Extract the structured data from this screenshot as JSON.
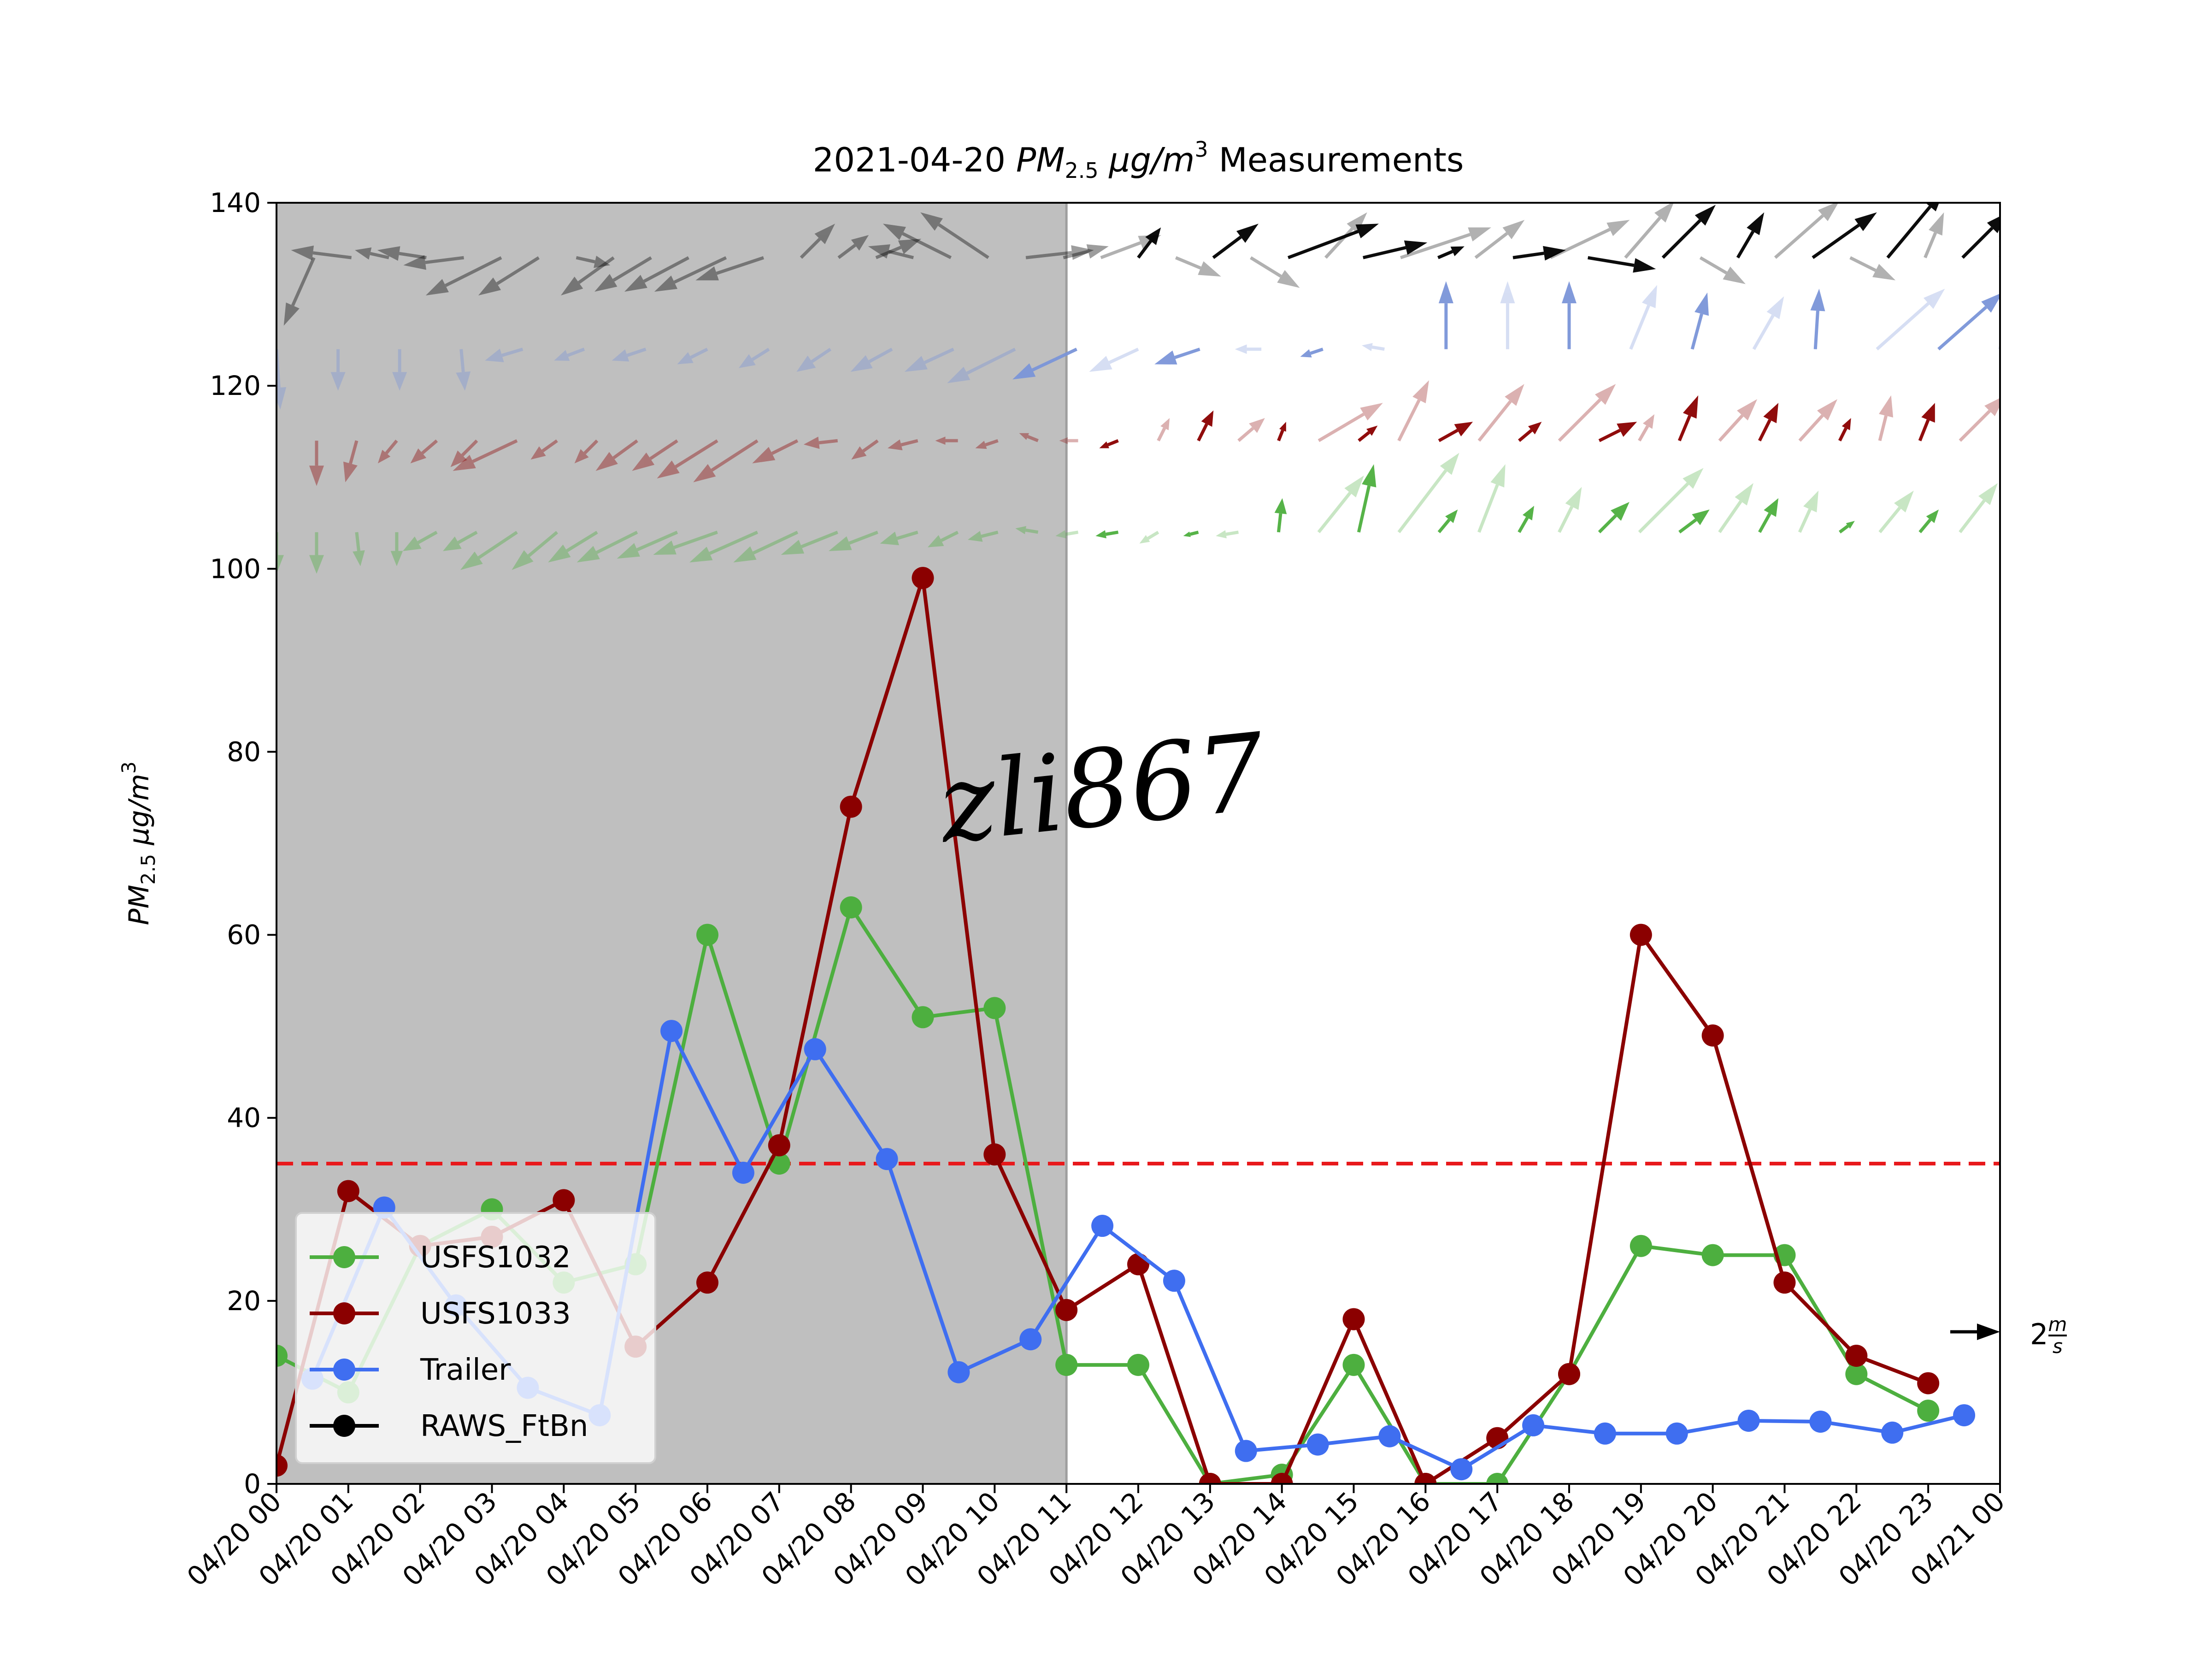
{
  "chart_data": {
    "type": "line",
    "title": {
      "prefix": "2021-04-20 ",
      "pm": "PM",
      "pm_sub": "2.5",
      "unit_mu": " μg/m",
      "unit_sup": "3",
      "suffix": " Measurements"
    },
    "ylabel": {
      "pm": "PM",
      "pm_sub": "2.5",
      "unit_mu": " μg/m",
      "unit_sup": "3"
    },
    "xlim": [
      0,
      24
    ],
    "ylim": [
      0,
      140
    ],
    "yticks": [
      0,
      20,
      40,
      60,
      80,
      100,
      120,
      140
    ],
    "x_tick_labels": [
      "04/20 00",
      "04/20 01",
      "04/20 02",
      "04/20 03",
      "04/20 04",
      "04/20 05",
      "04/20 06",
      "04/20 07",
      "04/20 08",
      "04/20 09",
      "04/20 10",
      "04/20 11",
      "04/20 12",
      "04/20 13",
      "04/20 14",
      "04/20 15",
      "04/20 16",
      "04/20 17",
      "04/20 18",
      "04/20 19",
      "04/20 20",
      "04/20 21",
      "04/20 22",
      "04/20 23",
      "04/21 00"
    ],
    "night_shading_hours": [
      0,
      11
    ],
    "threshold": {
      "value": 35,
      "color": "#e8191c",
      "style": "dashed"
    },
    "series": [
      {
        "name": "USFS1032",
        "color": "#4daf3f",
        "x": [
          0,
          1,
          2,
          3,
          4,
          5,
          6,
          7,
          8,
          9,
          10,
          11,
          12,
          13,
          14,
          15,
          16,
          17,
          18,
          19,
          20,
          21,
          22,
          23
        ],
        "y": [
          14,
          10,
          26,
          30,
          22,
          24,
          60,
          35,
          63,
          51,
          52,
          13,
          13,
          0,
          1,
          13,
          0,
          0,
          12,
          26,
          25,
          25,
          12,
          8
        ]
      },
      {
        "name": "USFS1033",
        "color": "#8b0000",
        "x": [
          0,
          1,
          2,
          3,
          4,
          5,
          6,
          7,
          8,
          9,
          10,
          11,
          12,
          13,
          14,
          15,
          16,
          17,
          18,
          19,
          20,
          21,
          22,
          23
        ],
        "y": [
          2,
          32,
          26,
          27,
          31,
          15,
          22,
          37,
          74,
          99,
          36,
          19,
          24,
          0,
          0,
          18,
          0,
          5,
          12,
          60,
          49,
          22,
          14,
          11
        ]
      },
      {
        "name": "Trailer",
        "color": "#3f6ef0",
        "x": [
          0.5,
          1.5,
          2.5,
          3.5,
          4.5,
          5.5,
          6.5,
          7.5,
          8.5,
          9.5,
          10.5,
          11.5,
          12.5,
          13.5,
          14.5,
          15.5,
          16.5,
          17.5,
          18.5,
          19.5,
          20.5,
          21.5,
          22.5,
          23.5
        ],
        "y": [
          11.5,
          30.2,
          19.5,
          10.5,
          7.5,
          49.5,
          34,
          47.5,
          35.5,
          12.2,
          15.8,
          28.2,
          22.2,
          3.6,
          4.3,
          5.2,
          1.6,
          6.4,
          5.5,
          5.5,
          6.9,
          6.8,
          5.6,
          7.5
        ]
      },
      {
        "name": "RAWS_FtBn",
        "color": "#000000",
        "x": [],
        "y": []
      }
    ],
    "wind_rows": [
      {
        "station": "RAWS_FtBn",
        "color": "#000000",
        "row_base": 134,
        "u": [
          -0.3,
          -0.8,
          -1.6,
          -0.9,
          -1.3,
          -1.6,
          -2.0,
          -1.6,
          0.9,
          -1.4,
          -1.5,
          -1.7,
          -1.9,
          -1.8,
          0.9,
          0.8,
          1.2,
          -1.2,
          -1.8,
          -1.8,
          1.8,
          1.2,
          1.6,
          0.6,
          1.2,
          1.2,
          1.3,
          2.4,
          1.1,
          1.7,
          2.4,
          0.7,
          1.3,
          1.4,
          2.1,
          1.8,
          1.3,
          1.4,
          1.2,
          0.7,
          1.7,
          1.7,
          1.2,
          1.5,
          0.5,
          1.2,
          1.0
        ],
        "v": [
          0.0,
          -1.8,
          0.2,
          0.2,
          0.2,
          -0.2,
          -1.0,
          -1.0,
          -0.2,
          -1.0,
          -0.9,
          -0.9,
          -0.9,
          -0.6,
          0.9,
          0.6,
          0.5,
          0.3,
          0.9,
          1.2,
          0.2,
          0.3,
          0.6,
          0.8,
          -0.5,
          0.9,
          -0.8,
          0.9,
          1.2,
          0.4,
          0.8,
          0.3,
          1.0,
          0.2,
          1.0,
          -0.3,
          1.5,
          1.4,
          -0.7,
          1.2,
          1.5,
          1.2,
          -0.6,
          1.8,
          1.2,
          1.2,
          1.1
        ]
      },
      {
        "station": "Trailer",
        "color": "#7b95d9",
        "row_base": 124,
        "u": [
          0.1,
          0.0,
          0.0,
          0.1,
          -1.0,
          -0.8,
          -0.9,
          -0.8,
          -0.8,
          -0.9,
          -1.1,
          -1.3,
          -1.8,
          -1.7,
          -1.3,
          -1.2,
          -0.7,
          -0.6,
          -0.6,
          0.0,
          0.0,
          0.0,
          0.7,
          0.4,
          0.8,
          0.1,
          1.8,
          1.7,
          0.4
        ],
        "v": [
          -1.6,
          -1.1,
          -1.1,
          -1.1,
          -0.3,
          -0.3,
          -0.3,
          -0.4,
          -0.5,
          -0.6,
          -0.6,
          -0.6,
          -0.9,
          -0.8,
          -0.6,
          -0.4,
          0.0,
          -0.2,
          0.1,
          1.8,
          1.8,
          1.8,
          1.7,
          1.5,
          1.4,
          1.6,
          1.6,
          1.5,
          1.9
        ]
      },
      {
        "station": "USFS1033",
        "color": "#8b0000",
        "row_base": 114,
        "u": [
          0.0,
          0.0,
          -0.3,
          -0.5,
          -0.7,
          -0.7,
          -1.7,
          -0.7,
          -0.6,
          -1.1,
          -1.2,
          -1.6,
          -1.7,
          -1.2,
          -0.9,
          -0.7,
          -0.8,
          -0.6,
          -0.6,
          -0.5,
          -0.5,
          -0.5,
          0.3,
          0.4,
          0.7,
          0.2,
          1.7,
          0.5,
          0.8,
          0.9,
          1.2,
          0.6,
          1.5,
          1.0,
          0.4,
          0.5,
          1.0,
          0.5,
          1.0,
          0.3,
          0.3,
          0.4,
          1.2,
          0.6
        ],
        "v": [
          0.0,
          -1.2,
          -1.1,
          -0.6,
          -0.6,
          -0.7,
          -0.8,
          -0.5,
          -0.6,
          -0.8,
          -0.8,
          -1.0,
          -1.1,
          -0.6,
          -0.1,
          -0.5,
          -0.2,
          0.0,
          -0.2,
          0.2,
          0.0,
          -0.2,
          0.6,
          0.8,
          0.6,
          0.5,
          1.0,
          0.4,
          1.6,
          0.5,
          1.5,
          0.5,
          1.5,
          0.5,
          0.7,
          1.2,
          1.1,
          1.0,
          1.1,
          0.6,
          1.2,
          1.0,
          1.2,
          0.4
        ]
      },
      {
        "station": "USFS1032",
        "color": "#4daf3f",
        "row_base": 104,
        "u": [
          0.0,
          0.0,
          0.1,
          0.0,
          -0.9,
          -0.9,
          -1.5,
          -1.2,
          -1.3,
          -1.6,
          -1.6,
          -1.7,
          -1.8,
          -1.7,
          -1.5,
          -1.3,
          -1.0,
          -0.8,
          -0.8,
          -0.6,
          -0.6,
          -0.6,
          -0.5,
          -0.4,
          -0.6,
          0.1,
          1.2,
          0.4,
          1.6,
          0.5,
          0.7,
          0.4,
          0.6,
          0.8,
          1.7,
          0.8,
          0.9,
          0.5,
          0.5,
          0.4,
          0.9,
          0.5,
          1.0,
          0.6
        ],
        "v": [
          -1.1,
          -1.1,
          -0.9,
          -0.9,
          -0.5,
          -0.5,
          -1.0,
          -1.0,
          -0.8,
          -0.8,
          -0.7,
          -0.6,
          -0.8,
          -0.8,
          -0.6,
          -0.5,
          -0.3,
          -0.4,
          -0.2,
          0.1,
          -0.1,
          -0.1,
          -0.3,
          -0.1,
          -0.1,
          0.9,
          1.5,
          1.8,
          2.1,
          0.6,
          1.8,
          0.7,
          1.2,
          0.8,
          1.7,
          0.6,
          1.3,
          0.9,
          1.1,
          0.3,
          1.1,
          0.6,
          1.3,
          0.5
        ]
      }
    ],
    "quiver_key": {
      "label": "2",
      "frac_num": "m",
      "frac_den": "s"
    },
    "legend_position": "lower-left",
    "watermark": "zli867",
    "grid": false
  }
}
